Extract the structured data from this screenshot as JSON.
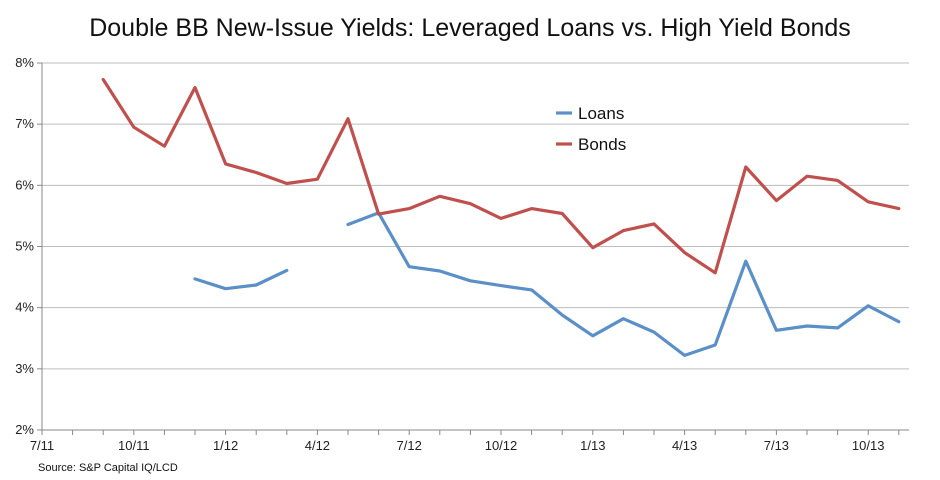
{
  "chart_data": {
    "type": "line",
    "title": "Double BB New-Issue Yields: Leveraged Loans vs. High Yield Bonds",
    "source": "Source: S&P Capital IQ/LCD",
    "xlabel": "",
    "ylabel": "",
    "x_start": "7/11",
    "x_tick_labels": [
      "7/11",
      "10/11",
      "1/12",
      "4/12",
      "7/12",
      "10/12",
      "1/13",
      "4/13",
      "7/13",
      "10/13"
    ],
    "y_tick_labels": [
      "2%",
      "3%",
      "4%",
      "5%",
      "6%",
      "7%",
      "8%"
    ],
    "ylim": [
      2,
      8
    ],
    "grid": "horizontal",
    "legend_position": "top-center",
    "series": [
      {
        "name": "Loans",
        "color": "#5b8fc7",
        "values": [
          null,
          null,
          null,
          4.47,
          4.31,
          4.37,
          4.61,
          null,
          5.36,
          5.55,
          4.67,
          4.6,
          4.44,
          4.36,
          4.29,
          3.88,
          3.54,
          3.82,
          3.6,
          3.22,
          3.39,
          4.76,
          3.63,
          3.7,
          3.67,
          4.03,
          3.77
        ]
      },
      {
        "name": "Bonds",
        "color": "#c0504d",
        "values": [
          7.73,
          6.95,
          6.64,
          7.6,
          6.35,
          6.21,
          6.03,
          6.1,
          7.09,
          5.53,
          5.62,
          5.82,
          5.7,
          5.46,
          5.62,
          5.54,
          4.98,
          5.26,
          5.37,
          4.9,
          4.57,
          6.3,
          5.75,
          6.15,
          6.08,
          5.73,
          5.62
        ]
      }
    ]
  }
}
